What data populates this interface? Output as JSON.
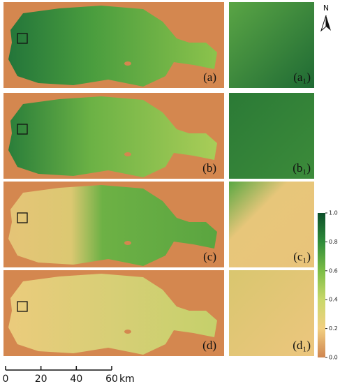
{
  "north": "N",
  "panels": [
    {
      "label": "(a)",
      "inset_label": "(a₁)"
    },
    {
      "label": "(b)",
      "inset_label": "(b₁)"
    },
    {
      "label": "(c)",
      "inset_label": "(c₁)"
    },
    {
      "label": "(d)",
      "inset_label": "(d₁)"
    }
  ],
  "colorbar": {
    "lim": [
      0,
      1
    ],
    "ticks": [
      {
        "value": 0,
        "label": "0.0"
      },
      {
        "value": 0.2,
        "label": "0.2"
      },
      {
        "value": 0.4,
        "label": "0.4"
      },
      {
        "value": 0.6,
        "label": "0.6"
      },
      {
        "value": 0.8,
        "label": "0.8"
      },
      {
        "value": 1,
        "label": "1.0"
      }
    ]
  },
  "scale_bar": {
    "ticks": [
      0,
      20,
      40,
      60
    ],
    "unit": "km"
  }
}
